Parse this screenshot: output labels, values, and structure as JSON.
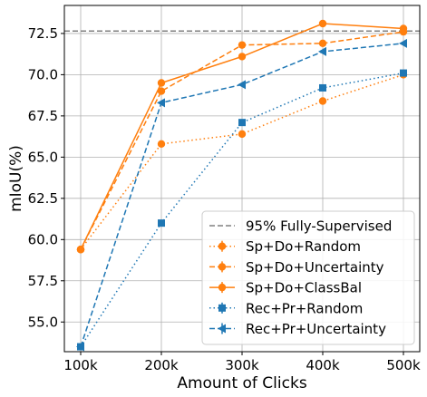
{
  "chart_data": {
    "type": "line",
    "title": "",
    "xlabel": "Amount of Clicks",
    "ylabel": "mIoU(%)",
    "x_categories": [
      "100k",
      "200k",
      "300k",
      "400k",
      "500k"
    ],
    "y_ticks": [
      "55.0",
      "57.5",
      "60.0",
      "62.5",
      "65.0",
      "67.5",
      "70.0",
      "72.5"
    ],
    "ylim": [
      53.2,
      74.2
    ],
    "grid": true,
    "legend_position": "lower-right",
    "reference_lines": [
      {
        "name": "95% Fully-Supervised",
        "value": 72.65,
        "color": "#808080",
        "dash": "dashed"
      }
    ],
    "series": [
      {
        "name": "Sp+Do+Random",
        "color": "#ff7f0e",
        "marker": "circle",
        "dash": "dotted",
        "values": [
          59.4,
          65.8,
          66.4,
          68.4,
          70.0
        ]
      },
      {
        "name": "Sp+Do+Uncertainty",
        "color": "#ff7f0e",
        "marker": "circle",
        "dash": "dashed",
        "values": [
          59.4,
          69.0,
          71.8,
          71.9,
          72.6
        ]
      },
      {
        "name": "Sp+Do+ClassBal",
        "color": "#ff7f0e",
        "marker": "circle",
        "dash": "solid",
        "values": [
          59.4,
          69.5,
          71.1,
          73.1,
          72.8
        ]
      },
      {
        "name": "Rec+Pr+Random",
        "color": "#1f77b4",
        "marker": "square",
        "dash": "dotted",
        "values": [
          53.5,
          61.0,
          67.1,
          69.2,
          70.1
        ]
      },
      {
        "name": "Rec+Pr+Uncertainty",
        "color": "#1f77b4",
        "marker": "triangle-left",
        "dash": "dashed",
        "values": [
          53.5,
          68.3,
          69.4,
          71.4,
          71.9
        ]
      }
    ]
  }
}
